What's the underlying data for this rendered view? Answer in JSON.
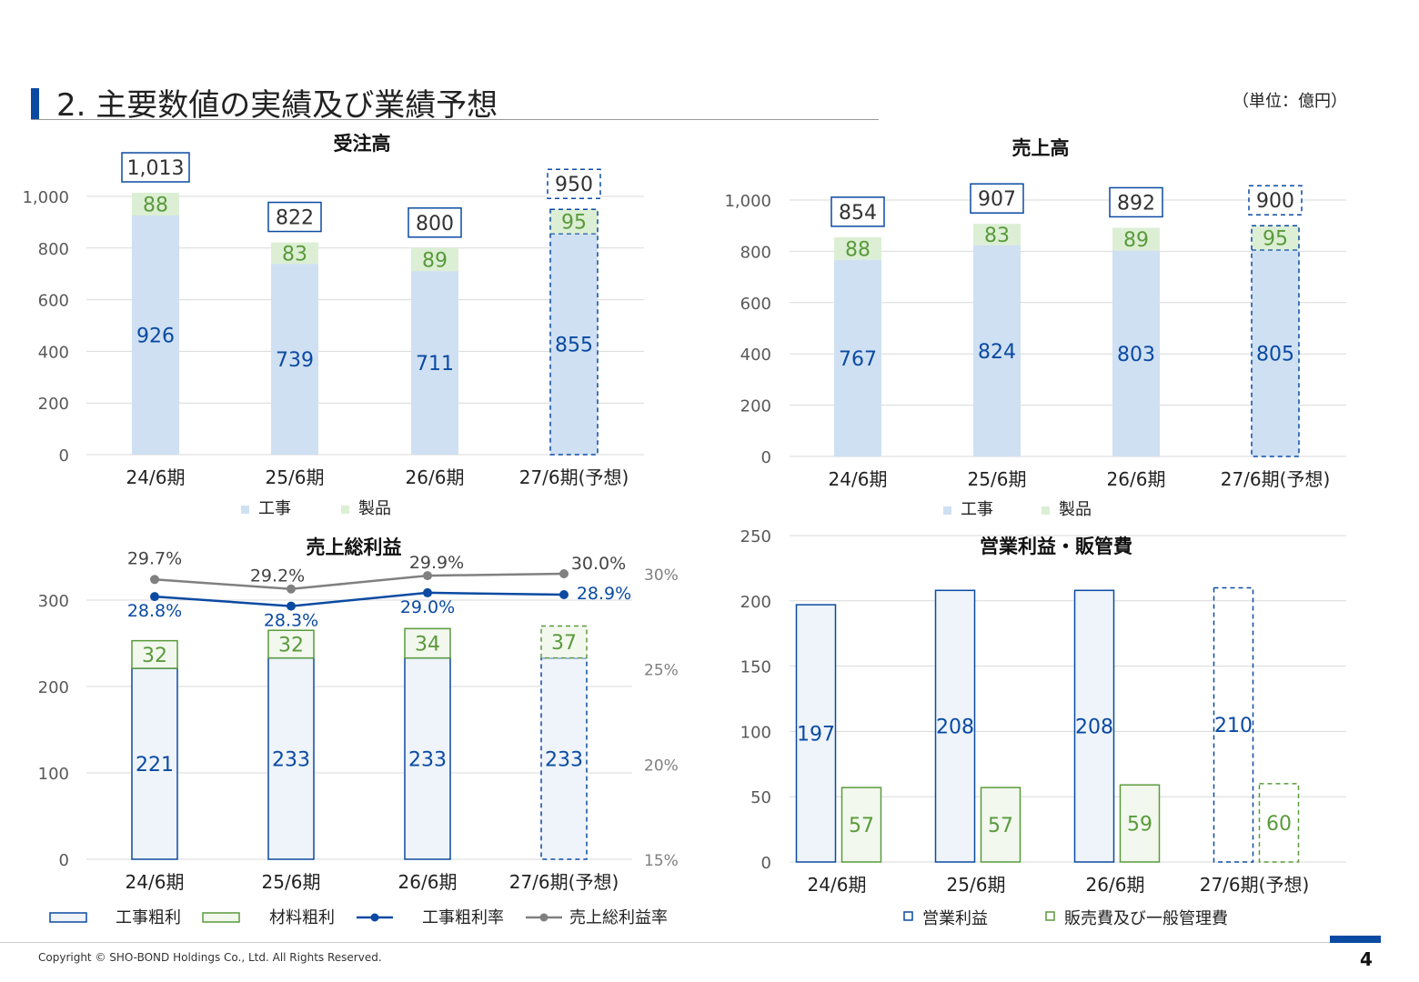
{
  "page": {
    "title": "2. 主要数値の実績及び業績予想",
    "unit_note": "（単位：億円）",
    "copyright": "Copyright © SHO-BOND Holdings Co., Ltd. All Rights Reserved.",
    "page_number": "4"
  },
  "colors": {
    "accent": "#0b4aa2",
    "construction_fill": "#cfe0f3",
    "product_fill": "#dcefd4",
    "product_text": "#5a9a3c",
    "gross_fill": "#eef4fa",
    "gray_line": "#808080"
  },
  "chart_data": [
    {
      "id": "orders",
      "type": "bar",
      "stacked": true,
      "title": "受注高",
      "categories": [
        "24/6期",
        "25/6期",
        "26/6期",
        "27/6期(予想)"
      ],
      "forecast_index": 3,
      "series": [
        {
          "name": "工事",
          "values": [
            926,
            739,
            711,
            855
          ]
        },
        {
          "name": "製品",
          "values": [
            88,
            83,
            89,
            95
          ]
        }
      ],
      "totals": [
        "1,013",
        "822",
        "800",
        "950"
      ],
      "ylim": [
        0,
        1000
      ],
      "yticks": [
        "0",
        "200",
        "400",
        "600",
        "800",
        "1,000"
      ],
      "grid": true,
      "legend_position": "bottom"
    },
    {
      "id": "sales",
      "type": "bar",
      "stacked": true,
      "title": "売上高",
      "categories": [
        "24/6期",
        "25/6期",
        "26/6期",
        "27/6期(予想)"
      ],
      "forecast_index": 3,
      "series": [
        {
          "name": "工事",
          "values": [
            767,
            824,
            803,
            805
          ]
        },
        {
          "name": "製品",
          "values": [
            88,
            83,
            89,
            95
          ]
        }
      ],
      "totals": [
        "854",
        "907",
        "892",
        "900"
      ],
      "ylim": [
        0,
        1000
      ],
      "yticks": [
        "0",
        "200",
        "400",
        "600",
        "800",
        "1,000"
      ],
      "grid": true,
      "legend_position": "bottom"
    },
    {
      "id": "gross_profit",
      "type": "bar",
      "stacked": true,
      "title": "売上総利益",
      "categories": [
        "24/6期",
        "25/6期",
        "26/6期",
        "27/6期(予想)"
      ],
      "forecast_index": 3,
      "series": [
        {
          "name": "工事粗利",
          "values": [
            221,
            233,
            233,
            233
          ]
        },
        {
          "name": "材料粗利",
          "values": [
            32,
            32,
            34,
            37
          ]
        }
      ],
      "line_series": [
        {
          "name": "工事粗利率",
          "values": [
            28.8,
            28.3,
            29.0,
            28.9
          ],
          "labels": [
            "28.8%",
            "28.3%",
            "29.0%",
            "28.9%"
          ]
        },
        {
          "name": "売上総利益率",
          "values": [
            29.7,
            29.2,
            29.9,
            30.0
          ],
          "labels": [
            "29.7%",
            "29.2%",
            "29.9%",
            "30.0%"
          ]
        }
      ],
      "ylim": [
        0,
        300
      ],
      "yticks": [
        "0",
        "100",
        "200",
        "300"
      ],
      "y2lim": [
        15,
        30
      ],
      "y2ticks": [
        "15%",
        "20%",
        "25%",
        "30%"
      ],
      "grid": true,
      "legend_position": "bottom"
    },
    {
      "id": "operating",
      "type": "bar",
      "stacked": false,
      "title": "営業利益・販管費",
      "categories": [
        "24/6期",
        "25/6期",
        "26/6期",
        "27/6期(予想)"
      ],
      "forecast_index": 3,
      "series": [
        {
          "name": "営業利益",
          "values": [
            197,
            208,
            208,
            210
          ]
        },
        {
          "name": "販売費及び一般管理費",
          "values": [
            57,
            57,
            59,
            60
          ]
        }
      ],
      "ylim": [
        0,
        250
      ],
      "yticks": [
        "0",
        "50",
        "100",
        "150",
        "200",
        "250"
      ],
      "grid": true,
      "legend_position": "bottom"
    }
  ]
}
